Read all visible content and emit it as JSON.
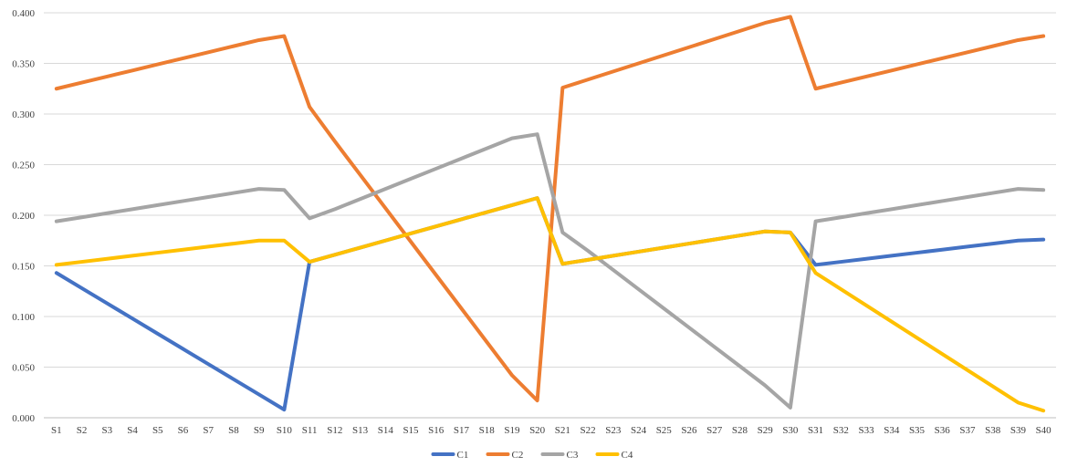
{
  "chart_data": {
    "type": "line",
    "title": "",
    "xlabel": "",
    "ylabel": "",
    "ylim": [
      0,
      0.4
    ],
    "yticks": [
      "0.000",
      "0.050",
      "0.100",
      "0.150",
      "0.200",
      "0.250",
      "0.300",
      "0.350",
      "0.400"
    ],
    "grid": true,
    "legend_position": "bottom",
    "categories": [
      "S1",
      "S2",
      "S3",
      "S4",
      "S5",
      "S6",
      "S7",
      "S8",
      "S9",
      "S10",
      "S11",
      "S12",
      "S13",
      "S14",
      "S15",
      "S16",
      "S17",
      "S18",
      "S19",
      "S20",
      "S21",
      "S22",
      "S23",
      "S24",
      "S25",
      "S26",
      "S27",
      "S28",
      "S29",
      "S30",
      "S31",
      "S32",
      "S33",
      "S34",
      "S35",
      "S36",
      "S37",
      "S38",
      "S39",
      "S40"
    ],
    "series": [
      {
        "name": "C1",
        "color": "#4472C4",
        "values": [
          0.143,
          0.128,
          0.113,
          0.098,
          0.083,
          0.068,
          0.053,
          0.038,
          0.023,
          0.008,
          0.154,
          0.161,
          0.168,
          0.175,
          0.182,
          0.189,
          0.196,
          0.203,
          0.21,
          0.217,
          0.152,
          0.156,
          0.16,
          0.164,
          0.168,
          0.172,
          0.176,
          0.18,
          0.184,
          0.183,
          0.151,
          0.154,
          0.157,
          0.16,
          0.163,
          0.166,
          0.169,
          0.172,
          0.175,
          0.176
        ]
      },
      {
        "name": "C2",
        "color": "#ED7D31",
        "values": [
          0.325,
          0.331,
          0.337,
          0.343,
          0.349,
          0.355,
          0.361,
          0.367,
          0.373,
          0.377,
          0.307,
          0.273,
          0.24,
          0.207,
          0.174,
          0.141,
          0.108,
          0.075,
          0.042,
          0.017,
          0.326,
          0.334,
          0.342,
          0.35,
          0.358,
          0.366,
          0.374,
          0.382,
          0.39,
          0.396,
          0.325,
          0.331,
          0.337,
          0.343,
          0.349,
          0.355,
          0.361,
          0.367,
          0.373,
          0.377
        ]
      },
      {
        "name": "C3",
        "color": "#A5A5A5",
        "values": [
          0.194,
          0.198,
          0.202,
          0.206,
          0.21,
          0.214,
          0.218,
          0.222,
          0.226,
          0.225,
          0.197,
          0.206,
          0.216,
          0.226,
          0.236,
          0.246,
          0.256,
          0.266,
          0.276,
          0.28,
          0.183,
          0.165,
          0.146,
          0.127,
          0.108,
          0.089,
          0.07,
          0.051,
          0.032,
          0.01,
          0.194,
          0.198,
          0.202,
          0.206,
          0.21,
          0.214,
          0.218,
          0.222,
          0.226,
          0.225
        ]
      },
      {
        "name": "C4",
        "color": "#FFC000",
        "values": [
          0.151,
          0.154,
          0.157,
          0.16,
          0.163,
          0.166,
          0.169,
          0.172,
          0.175,
          0.175,
          0.154,
          0.161,
          0.168,
          0.175,
          0.182,
          0.189,
          0.196,
          0.203,
          0.21,
          0.217,
          0.152,
          0.156,
          0.16,
          0.164,
          0.168,
          0.172,
          0.176,
          0.18,
          0.184,
          0.183,
          0.143,
          0.127,
          0.111,
          0.095,
          0.079,
          0.063,
          0.047,
          0.031,
          0.015,
          0.007
        ]
      }
    ]
  }
}
